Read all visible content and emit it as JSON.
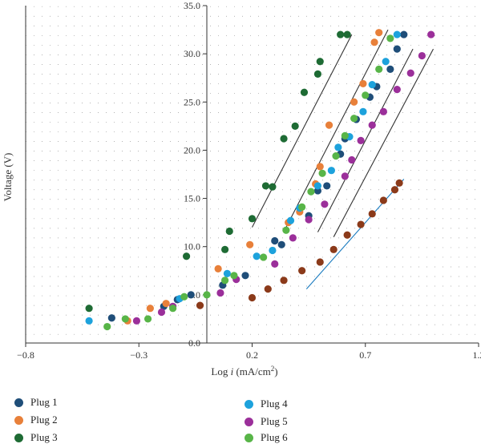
{
  "chart_data": {
    "type": "scatter",
    "xlabel_prefix": "Log",
    "xlabel_var": "i",
    "xlabel_unit": "(mA/cm",
    "xlabel_sup": "2",
    "xlabel_close": ")",
    "ylabel": "Voltage (V)",
    "xlim": [
      -0.8,
      1.2
    ],
    "ylim": [
      0,
      35
    ],
    "x_ticks": [
      -0.8,
      -0.3,
      0.2,
      0.7,
      1.2
    ],
    "x_tick_labels": [
      "−0.8",
      "−0.3",
      "0.2",
      "0.7",
      "1.2"
    ],
    "y_ticks": [
      0,
      5,
      10,
      15,
      20,
      25,
      30,
      35
    ],
    "y_tick_labels": [
      "0.0",
      "5.0",
      "10.0",
      "15.0",
      "20.0",
      "25.0",
      "30.0",
      "35.0"
    ],
    "grid": "dotted",
    "legend_position": "bottom",
    "series": [
      {
        "name": "Plug 1",
        "color": "#1f4e79",
        "points": [
          [
            -0.42,
            2.6
          ],
          [
            -0.19,
            3.8
          ],
          [
            -0.13,
            4.5
          ],
          [
            -0.07,
            5.0
          ],
          [
            0.07,
            6.0
          ],
          [
            0.17,
            7.0
          ],
          [
            0.3,
            10.6
          ],
          [
            0.33,
            10.2
          ],
          [
            0.45,
            13.2
          ],
          [
            0.49,
            15.8
          ],
          [
            0.53,
            16.3
          ],
          [
            0.59,
            19.6
          ],
          [
            0.61,
            21.2
          ],
          [
            0.66,
            23.2
          ],
          [
            0.72,
            25.5
          ],
          [
            0.75,
            26.6
          ],
          [
            0.81,
            28.4
          ],
          [
            0.84,
            30.5
          ],
          [
            0.87,
            32.0
          ]
        ]
      },
      {
        "name": "Plug 2",
        "color": "#e8803a",
        "points": [
          [
            -0.35,
            2.3
          ],
          [
            -0.25,
            3.6
          ],
          [
            -0.18,
            4.1
          ],
          [
            0.05,
            7.7
          ],
          [
            0.19,
            10.2
          ],
          [
            0.36,
            12.5
          ],
          [
            0.41,
            13.6
          ],
          [
            0.48,
            16.5
          ],
          [
            0.5,
            18.3
          ],
          [
            0.54,
            22.6
          ],
          [
            0.65,
            25.0
          ],
          [
            0.69,
            26.9
          ],
          [
            0.74,
            31.2
          ],
          [
            0.76,
            32.2
          ]
        ]
      },
      {
        "name": "Plug 3",
        "color": "#1e6b34",
        "points": [
          [
            -0.52,
            3.6
          ],
          [
            -0.09,
            9.0
          ],
          [
            0.08,
            9.7
          ],
          [
            0.1,
            11.6
          ],
          [
            0.2,
            12.9
          ],
          [
            0.26,
            16.3
          ],
          [
            0.29,
            16.2
          ],
          [
            0.34,
            21.2
          ],
          [
            0.39,
            22.5
          ],
          [
            0.43,
            26.0
          ],
          [
            0.49,
            27.9
          ],
          [
            0.5,
            29.2
          ],
          [
            0.59,
            32.0
          ],
          [
            0.62,
            32.0
          ]
        ]
      },
      {
        "name": "Plug 4",
        "color": "#1da2dc",
        "points": [
          [
            -0.52,
            2.3
          ],
          [
            -0.12,
            4.6
          ],
          [
            0.09,
            7.2
          ],
          [
            0.22,
            9.0
          ],
          [
            0.29,
            9.6
          ],
          [
            0.37,
            12.7
          ],
          [
            0.41,
            14.0
          ],
          [
            0.49,
            16.3
          ],
          [
            0.55,
            17.9
          ],
          [
            0.58,
            20.3
          ],
          [
            0.63,
            21.4
          ],
          [
            0.69,
            24.0
          ],
          [
            0.73,
            26.8
          ],
          [
            0.79,
            29.2
          ],
          [
            0.84,
            32.0
          ]
        ]
      },
      {
        "name": "Plug 5",
        "color": "#9b2f9a",
        "points": [
          [
            -0.31,
            2.3
          ],
          [
            -0.2,
            3.2
          ],
          [
            -0.15,
            3.8
          ],
          [
            0.06,
            5.2
          ],
          [
            0.13,
            6.6
          ],
          [
            0.3,
            8.2
          ],
          [
            0.38,
            10.9
          ],
          [
            0.45,
            12.8
          ],
          [
            0.52,
            14.4
          ],
          [
            0.61,
            17.3
          ],
          [
            0.64,
            19.0
          ],
          [
            0.68,
            21.0
          ],
          [
            0.73,
            22.6
          ],
          [
            0.78,
            24.0
          ],
          [
            0.84,
            26.3
          ],
          [
            0.9,
            28.0
          ],
          [
            0.95,
            29.8
          ],
          [
            0.99,
            32.0
          ]
        ]
      },
      {
        "name": "Plug 6",
        "color": "#58b548",
        "points": [
          [
            -0.44,
            1.7
          ],
          [
            -0.36,
            2.5
          ],
          [
            -0.26,
            2.5
          ],
          [
            -0.15,
            3.6
          ],
          [
            -0.1,
            4.8
          ],
          [
            0.0,
            5.0
          ],
          [
            0.08,
            6.5
          ],
          [
            0.12,
            7.0
          ],
          [
            0.25,
            8.9
          ],
          [
            0.35,
            11.7
          ],
          [
            0.42,
            14.1
          ],
          [
            0.46,
            15.7
          ],
          [
            0.51,
            17.6
          ],
          [
            0.57,
            19.4
          ],
          [
            0.61,
            21.5
          ],
          [
            0.65,
            23.3
          ],
          [
            0.7,
            25.7
          ],
          [
            0.76,
            28.4
          ],
          [
            0.81,
            31.6
          ]
        ]
      },
      {
        "name": "",
        "color": "#8b3a1a",
        "points": [
          [
            -0.03,
            3.9
          ],
          [
            0.2,
            4.7
          ],
          [
            0.27,
            5.6
          ],
          [
            0.34,
            6.5
          ],
          [
            0.42,
            7.5
          ],
          [
            0.5,
            8.4
          ],
          [
            0.56,
            9.7
          ],
          [
            0.62,
            11.2
          ],
          [
            0.68,
            12.3
          ],
          [
            0.73,
            13.4
          ],
          [
            0.78,
            14.8
          ],
          [
            0.83,
            15.9
          ],
          [
            0.85,
            16.6
          ]
        ]
      }
    ],
    "trend_lines": [
      {
        "color": "#333333",
        "from": [
          0.2,
          12.0
        ],
        "to": [
          0.64,
          32.0
        ]
      },
      {
        "color": "#333333",
        "from": [
          0.35,
          12.0
        ],
        "to": [
          0.8,
          32.5
        ]
      },
      {
        "color": "#333333",
        "from": [
          0.49,
          11.5
        ],
        "to": [
          0.91,
          30.5
        ]
      },
      {
        "color": "#333333",
        "from": [
          0.56,
          11.0
        ],
        "to": [
          1.0,
          30.5
        ]
      },
      {
        "color": "#1a7bbf",
        "from": [
          0.44,
          5.6
        ],
        "to": [
          0.87,
          17.0
        ]
      }
    ]
  }
}
